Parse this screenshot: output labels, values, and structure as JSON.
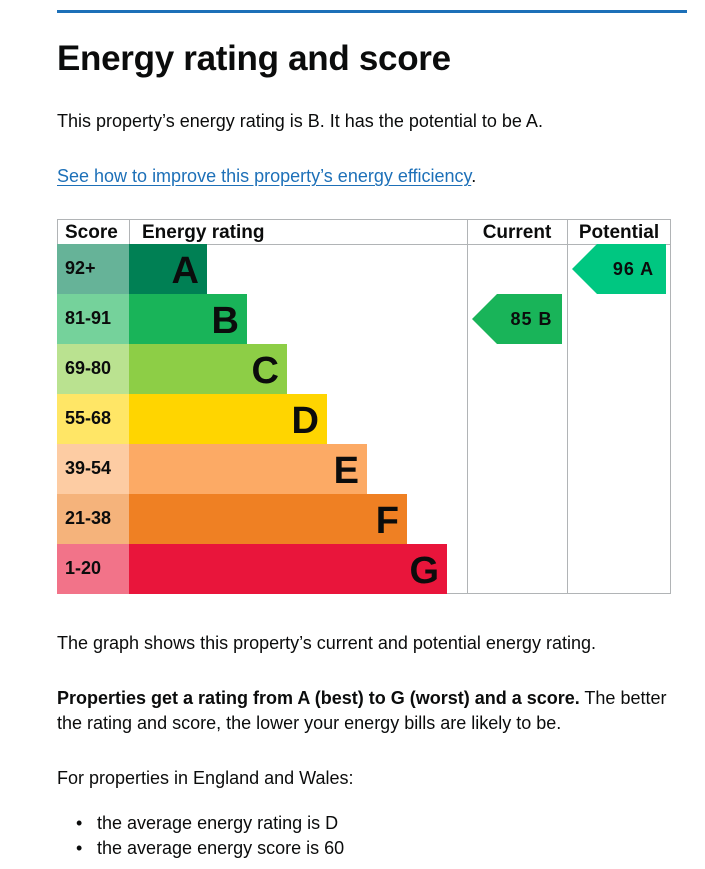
{
  "page": {
    "title": "Energy rating and score",
    "intro": "This property’s energy rating is B. It has the potential to be A.",
    "improve_link": "See how to improve this property’s energy efficiency",
    "improve_link_suffix": ".",
    "graph_caption": "The graph shows this property’s current and potential energy rating.",
    "rating_explainer_bold": "Properties get a rating from A (best) to G (worst) and a score.",
    "rating_explainer_line1": " The better",
    "rating_explainer_line2": "the rating and score, the lower your energy bills are likely to be.",
    "regional_intro": "For properties in England and Wales:",
    "averages": [
      "the average energy rating is D",
      "the average energy score is 60"
    ]
  },
  "chart_data": {
    "type": "bar",
    "title": "",
    "headers": {
      "score": "Score",
      "rating": "Energy rating",
      "current": "Current",
      "potential": "Potential"
    },
    "bands": [
      {
        "band": "A",
        "score_range": "92+",
        "min": 92,
        "max": 100,
        "color": "#008054",
        "score_bg": "#66b398"
      },
      {
        "band": "B",
        "score_range": "81-91",
        "min": 81,
        "max": 91,
        "color": "#19b459",
        "score_bg": "#75d29b"
      },
      {
        "band": "C",
        "score_range": "69-80",
        "min": 69,
        "max": 80,
        "color": "#8dce46",
        "score_bg": "#bae290"
      },
      {
        "band": "D",
        "score_range": "55-68",
        "min": 55,
        "max": 68,
        "color": "#ffd500",
        "score_bg": "#ffe666"
      },
      {
        "band": "E",
        "score_range": "39-54",
        "min": 39,
        "max": 54,
        "color": "#fcaa65",
        "score_bg": "#fdcca3"
      },
      {
        "band": "F",
        "score_range": "21-38",
        "min": 21,
        "max": 38,
        "color": "#ef8023",
        "score_bg": "#f5b37b"
      },
      {
        "band": "G",
        "score_range": "1-20",
        "min": 1,
        "max": 20,
        "color": "#e9153b",
        "score_bg": "#f27389"
      }
    ],
    "current": {
      "score": 85,
      "band": "B",
      "label": "85 B",
      "color": "#19b459"
    },
    "potential": {
      "score": 96,
      "band": "A",
      "label": "96 A",
      "color": "#00c781"
    }
  }
}
